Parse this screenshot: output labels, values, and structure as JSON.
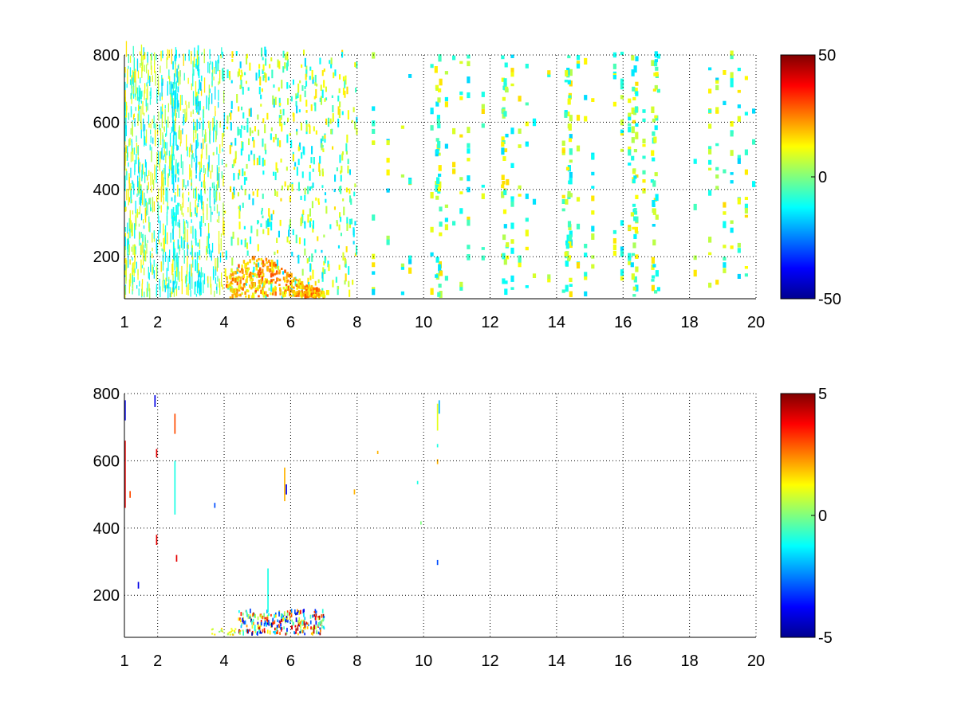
{
  "chart_data": [
    {
      "type": "heatmap",
      "title": "",
      "xlabel": "",
      "ylabel": "",
      "xlim": [
        1,
        20
      ],
      "ylim": [
        75,
        800
      ],
      "x_ticks": [
        1,
        2,
        4,
        6,
        8,
        10,
        12,
        14,
        16,
        18,
        20
      ],
      "x_tick_labels": [
        "1",
        "2",
        "4",
        "6",
        "8",
        "10",
        "12",
        "14",
        "16",
        "18",
        "20"
      ],
      "y_ticks": [
        200,
        400,
        600,
        800
      ],
      "y_tick_labels": [
        "200",
        "400",
        "600",
        "800"
      ],
      "grid": true,
      "colormap": "jet",
      "colorbar": {
        "min": -50,
        "max": 50,
        "ticks": [
          50,
          0,
          -50
        ],
        "tick_labels": [
          "50",
          "0",
          "-50"
        ]
      },
      "pattern": "sparse values mostly near 0 across all x; dense scatter for x<4; vertical streaks near x=10.4, 16.3, 16.9; hot region (10 to 30) at x 4-6.5, y 80-180"
    },
    {
      "type": "heatmap",
      "title": "",
      "xlabel": "",
      "ylabel": "",
      "xlim": [
        1,
        20
      ],
      "ylim": [
        75,
        800
      ],
      "x_ticks": [
        1,
        2,
        4,
        6,
        8,
        10,
        12,
        14,
        16,
        18,
        20
      ],
      "x_tick_labels": [
        "1",
        "2",
        "4",
        "6",
        "8",
        "10",
        "12",
        "14",
        "16",
        "18",
        "20"
      ],
      "y_ticks": [
        200,
        400,
        600,
        800
      ],
      "y_tick_labels": [
        "200",
        "400",
        "600",
        "800"
      ],
      "grid": true,
      "colormap": "jet",
      "colorbar": {
        "min": -5,
        "max": 5,
        "ticks": [
          5,
          0,
          -5
        ],
        "tick_labels": [
          "5",
          "0",
          "-5"
        ]
      },
      "pattern": "very sparse; cluster of strong values (-5 to 5) at x 4.5-7, y 80-160; isolated streaks near x=1, 1.9, 2.5, 5.8, 10.4"
    }
  ]
}
